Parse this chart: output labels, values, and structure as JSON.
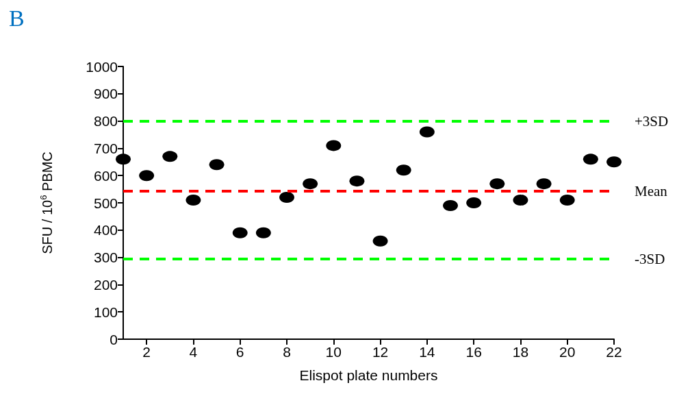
{
  "chart_data": {
    "type": "scatter",
    "title": "B",
    "xlabel": "Elispot plate numbers",
    "ylabel": "SFU / 10$^{6}$ PBMC",
    "x": [
      1,
      2,
      3,
      4,
      5,
      6,
      7,
      8,
      9,
      10,
      11,
      12,
      13,
      14,
      15,
      16,
      17,
      18,
      19,
      20,
      21,
      22
    ],
    "series": [
      {
        "color": "#000000",
        "values": [
          660,
          600,
          670,
          510,
          640,
          390,
          390,
          520,
          570,
          710,
          580,
          360,
          620,
          760,
          490,
          500,
          570,
          510,
          570,
          510,
          660,
          650
        ]
      }
    ],
    "xlim": [
      1,
      22
    ],
    "xticks": [
      2,
      4,
      6,
      8,
      10,
      12,
      14,
      16,
      18,
      20,
      22
    ],
    "ylim": [
      0,
      1000
    ],
    "yticks": [
      0,
      100,
      200,
      300,
      400,
      500,
      600,
      700,
      800,
      900,
      1000
    ],
    "ref_lines": [
      {
        "axis": "y",
        "value": 800,
        "label": "+3SD",
        "color": "#00ff00",
        "line_style": "dashed"
      },
      {
        "axis": "y",
        "value": 543,
        "label": "Mean",
        "color": "#ff0000",
        "line_style": "dashed"
      },
      {
        "axis": "y",
        "value": 295,
        "label": "-3SD",
        "color": "#00ff00",
        "line_style": "dashed"
      }
    ],
    "grid": false,
    "marker": "circle"
  }
}
